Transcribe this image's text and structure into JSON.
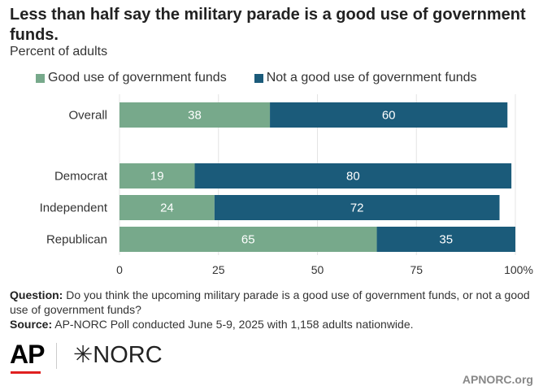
{
  "header": {
    "title": "Less than half say the military parade is a good use of government funds.",
    "subtitle": "Percent of adults"
  },
  "colors": {
    "good": "#77a98b",
    "notgood": "#1b5b7a",
    "grid": "#e4e4e4"
  },
  "chart_data": {
    "type": "bar",
    "orientation": "horizontal",
    "stacked": true,
    "categories": [
      "Overall",
      "Democrat",
      "Independent",
      "Republican"
    ],
    "series": [
      {
        "name": "Good use of government funds",
        "values": [
          38,
          19,
          24,
          65
        ]
      },
      {
        "name": "Not a good use of government funds",
        "values": [
          60,
          80,
          72,
          35
        ]
      }
    ],
    "xticks": [
      "0",
      "25",
      "50",
      "75",
      "100%"
    ],
    "xtick_values": [
      0,
      25,
      50,
      75,
      100
    ],
    "xlim": [
      0,
      100
    ],
    "grid": true,
    "legend_position": "top"
  },
  "footer": {
    "question_label": "Question:",
    "question_text": " Do you think the upcoming military parade is a good use of government funds, or not a good use of government funds?",
    "source_label": "Source:",
    "source_text": " AP-NORC Poll conducted June 5-9, 2025 with 1,158 adults nationwide."
  },
  "logos": {
    "ap": "AP",
    "norc": "✳NORC"
  },
  "site": "APNORC.org"
}
